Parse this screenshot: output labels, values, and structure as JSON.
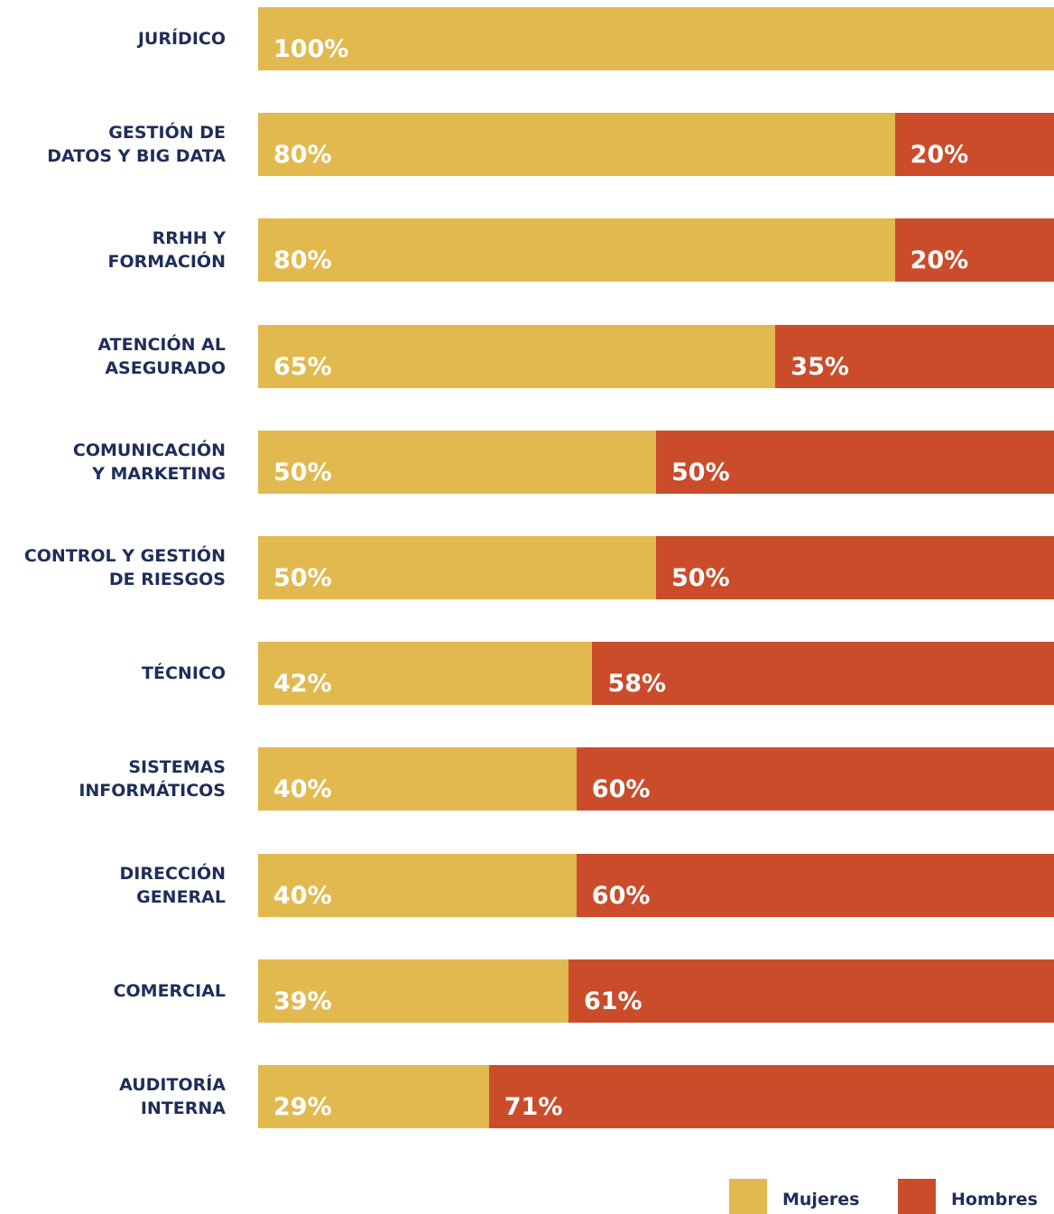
{
  "chart_data": {
    "type": "stacked-barh",
    "categories": [
      "JURÍDICO",
      "GESTIÓN DE\nDATOS Y BIG DATA",
      "RRHH Y\nFORMACIÓN",
      "ATENCIÓN AL\nASEGURADO",
      "COMUNICACIÓN\nY MARKETING",
      "CONTROL Y GESTIÓN\nDE RIESGOS",
      "TÉCNICO",
      "SISTEMAS\nINFORMÁTICOS",
      "DIRECCIÓN\nGENERAL",
      "COMERCIAL",
      "AUDITORÍA\nINTERNA"
    ],
    "series": [
      {
        "name": "Mujeres",
        "color": "#e2b94f",
        "values": [
          100,
          80,
          80,
          65,
          50,
          50,
          42,
          40,
          40,
          39,
          29
        ],
        "value_labels": [
          "100%",
          "80%",
          "80%",
          "65%",
          "50%",
          "50%",
          "42%",
          "40%",
          "40%",
          "39%",
          "29%"
        ]
      },
      {
        "name": "Hombres",
        "color": "#cb4c2a",
        "values": [
          0,
          20,
          20,
          35,
          50,
          50,
          58,
          60,
          60,
          61,
          71
        ],
        "value_labels": [
          null,
          "20%",
          "20%",
          "35%",
          "50%",
          "50%",
          "58%",
          "60%",
          "60%",
          "61%",
          "71%"
        ]
      }
    ],
    "xlim": [
      0,
      100
    ],
    "legend": "bottom-right"
  }
}
